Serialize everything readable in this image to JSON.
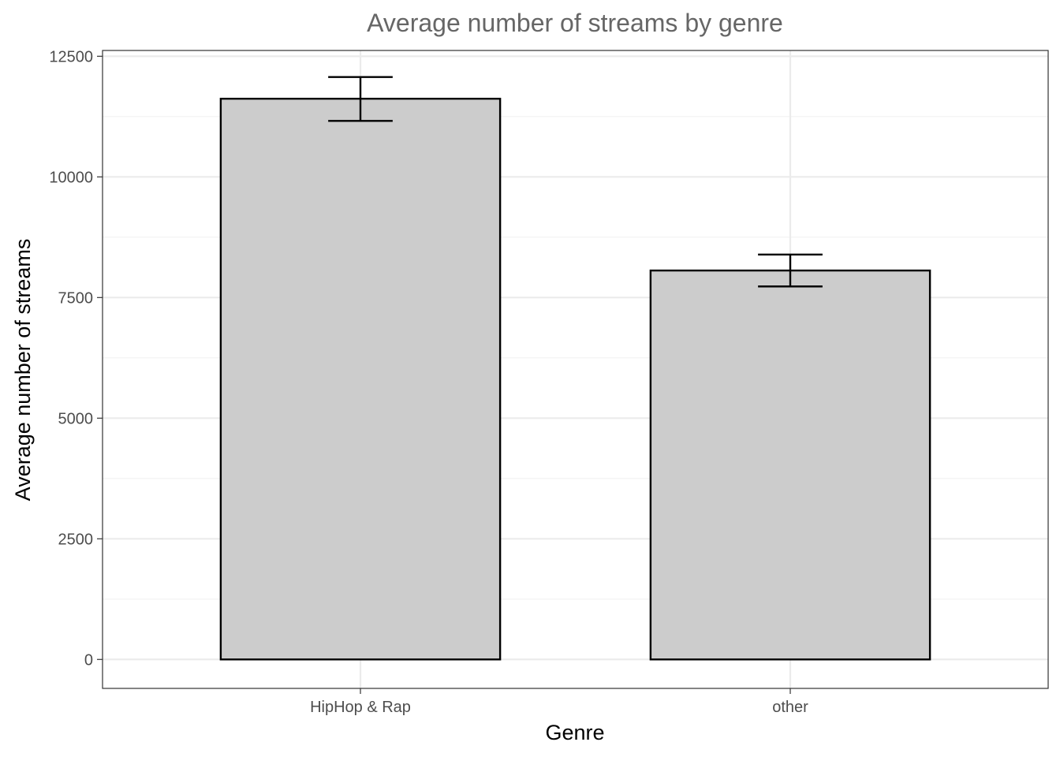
{
  "chart_data": {
    "type": "bar",
    "title": "Average number of streams by genre",
    "xlabel": "Genre",
    "ylabel": "Average number of streams",
    "categories": [
      "HipHop & Rap",
      "other"
    ],
    "values": [
      11620,
      8060
    ],
    "error_bars": [
      {
        "lower": 11160,
        "upper": 12070
      },
      {
        "lower": 7730,
        "upper": 8390
      }
    ],
    "ylim": [
      -600,
      12620
    ],
    "yticks": [
      0,
      2500,
      5000,
      7500,
      10000,
      12500
    ],
    "ytick_labels": [
      "0",
      "2500",
      "5000",
      "7500",
      "10000",
      "12500"
    ],
    "grid": true,
    "colors": {
      "bar_fill": "#cccccc",
      "bar_stroke": "#000000",
      "grid_major": "#ebebeb",
      "grid_minor": "#f2f2f2",
      "panel_border": "#333333"
    }
  }
}
